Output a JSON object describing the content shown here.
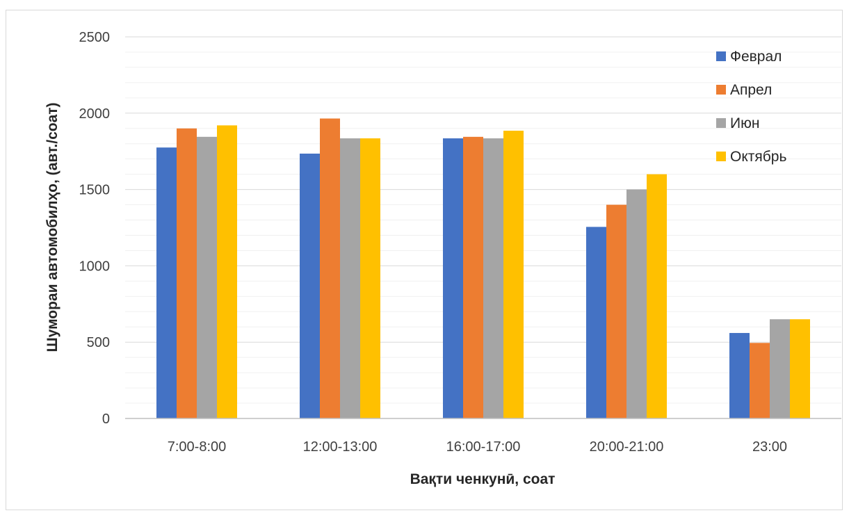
{
  "chart_data": {
    "type": "bar",
    "title": "",
    "xlabel": "Вақти ченкунӣ, соат",
    "ylabel": "Шумораи автомобилҳо, (авт./соат)",
    "categories": [
      "7:00-8:00",
      "12:00-13:00",
      "16:00-17:00",
      "20:00-21:00",
      "23:00"
    ],
    "series": [
      {
        "name": "Феврал",
        "color": "#4472C4",
        "values": [
          1775,
          1735,
          1835,
          1255,
          560
        ]
      },
      {
        "name": "Апрел",
        "color": "#ED7D31",
        "values": [
          1900,
          1965,
          1845,
          1400,
          495
        ]
      },
      {
        "name": "Июн",
        "color": "#A5A5A5",
        "values": [
          1845,
          1835,
          1835,
          1500,
          650
        ]
      },
      {
        "name": "Октябрь",
        "color": "#FFC000",
        "values": [
          1920,
          1835,
          1885,
          1600,
          650
        ]
      }
    ],
    "ylim": [
      0,
      2500
    ],
    "yticks": [
      0,
      500,
      1000,
      1500,
      2000,
      2500
    ],
    "minor_grid_step": 100,
    "grid": true,
    "legend_position": "top-right"
  }
}
